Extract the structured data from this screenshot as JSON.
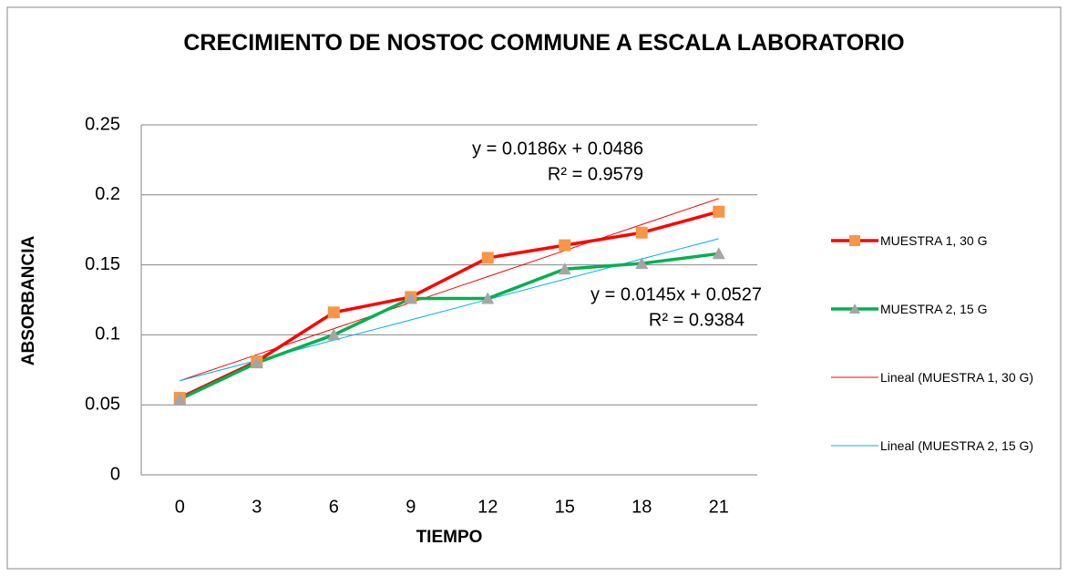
{
  "chart_data": {
    "type": "line",
    "title": "CRECIMIENTO DE NOSTOC COMMUNE A ESCALA LABORATORIO",
    "x_label": "TIEMPO",
    "y_label": "ABSORBANCIA",
    "categories": [
      "0",
      "3",
      "6",
      "9",
      "12",
      "15",
      "18",
      "21"
    ],
    "series": [
      {
        "name": "MUESTRA 1, 30 G",
        "color": "#ff0000",
        "marker": "square",
        "marker_color": "#f79646",
        "width": 3.5,
        "values": [
          0.055,
          0.081,
          0.116,
          0.127,
          0.155,
          0.164,
          0.173,
          0.188
        ]
      },
      {
        "name": "MUESTRA 2,  15 G",
        "color": "#00b050",
        "marker": "triangle",
        "marker_color": "#a5a5a5",
        "width": 3.5,
        "values": [
          0.054,
          0.08,
          0.1,
          0.126,
          0.126,
          0.147,
          0.151,
          0.158
        ]
      },
      {
        "name": "Lineal (MUESTRA 1, 30 G)",
        "color": "#ff0000",
        "width": 1,
        "values": [
          0.0672,
          0.0858,
          0.1044,
          0.123,
          0.1416,
          0.1602,
          0.1788,
          0.1974
        ]
      },
      {
        "name": "Lineal (MUESTRA 2,  15 G)",
        "color": "#00b0f0",
        "width": 1,
        "values": [
          0.0672,
          0.0817,
          0.0962,
          0.1107,
          0.1252,
          0.1397,
          0.1542,
          0.1687
        ]
      }
    ],
    "annotations": [
      "y = 0.0186x + 0.0486",
      "R² = 0.9579",
      "y = 0.0145x + 0.0527",
      "R² = 0.9384"
    ],
    "ylim": [
      0,
      0.25
    ],
    "yticks": [
      0,
      0.05,
      0.1,
      0.15,
      0.2,
      0.25
    ],
    "grid": true,
    "legend": "right"
  }
}
